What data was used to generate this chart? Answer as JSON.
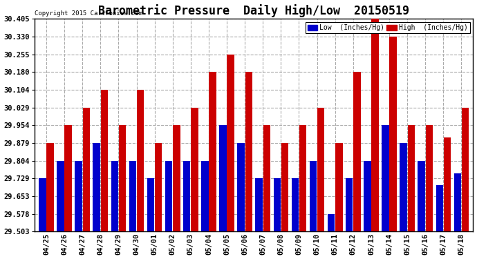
{
  "title": "Barometric Pressure  Daily High/Low  20150519",
  "copyright": "Copyright 2015 Cartronics.com",
  "legend_low": "Low  (Inches/Hg)",
  "legend_high": "High  (Inches/Hg)",
  "color_low": "#0000cc",
  "color_high": "#cc0000",
  "background_color": "#ffffff",
  "plot_bg_color": "#ffffff",
  "grid_color": "#aaaaaa",
  "dates": [
    "04/25",
    "04/26",
    "04/27",
    "04/28",
    "04/29",
    "04/30",
    "05/01",
    "05/02",
    "05/03",
    "05/04",
    "05/05",
    "05/06",
    "05/07",
    "05/08",
    "05/09",
    "05/10",
    "05/11",
    "05/12",
    "05/13",
    "05/14",
    "05/15",
    "05/16",
    "05/17",
    "05/18"
  ],
  "low_values": [
    29.729,
    29.804,
    29.804,
    29.879,
    29.804,
    29.804,
    29.729,
    29.804,
    29.804,
    29.804,
    29.954,
    29.879,
    29.729,
    29.729,
    29.729,
    29.804,
    29.578,
    29.729,
    29.804,
    29.954,
    29.879,
    29.804,
    29.7,
    29.75
  ],
  "high_values": [
    29.879,
    29.954,
    30.029,
    30.104,
    29.954,
    30.104,
    29.879,
    29.954,
    30.029,
    30.18,
    30.255,
    30.18,
    29.954,
    29.879,
    29.954,
    30.029,
    29.879,
    30.18,
    30.405,
    30.33,
    29.954,
    29.954,
    29.904,
    30.029
  ],
  "ylim_min": 29.503,
  "ylim_max": 30.405,
  "yticks": [
    29.503,
    29.578,
    29.653,
    29.729,
    29.804,
    29.879,
    29.954,
    30.029,
    30.104,
    30.18,
    30.255,
    30.33,
    30.405
  ],
  "title_fontsize": 12,
  "tick_fontsize": 7.5,
  "border_color": "#000000"
}
